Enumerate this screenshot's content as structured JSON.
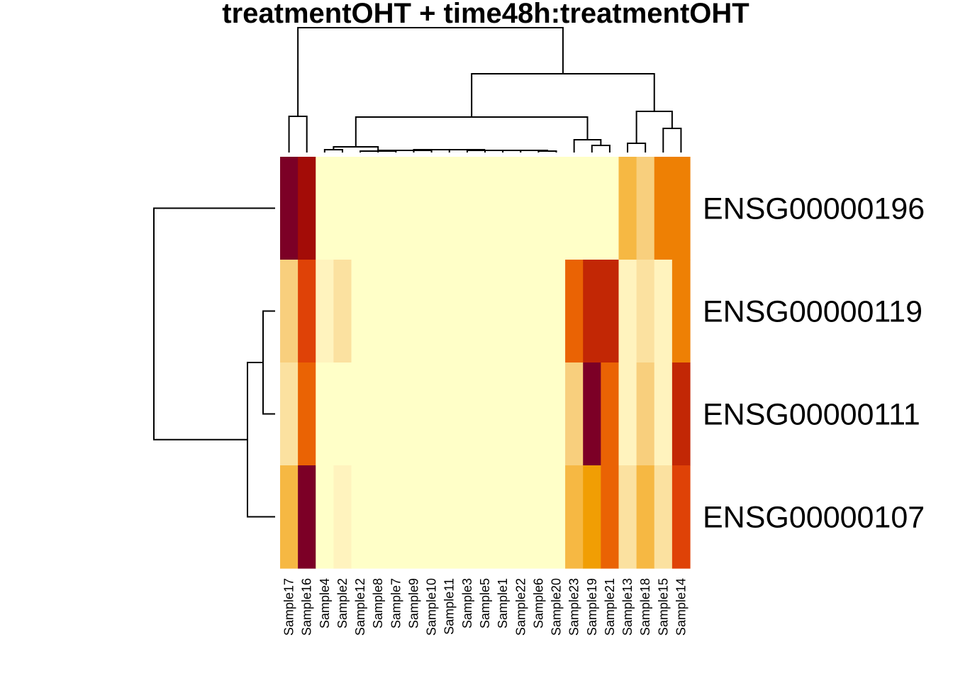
{
  "chart_data": {
    "type": "heatmap",
    "title": "treatmentOHT + time48h:treatmentOHT",
    "columns": [
      "Sample17",
      "Sample16",
      "Sample4",
      "Sample2",
      "Sample12",
      "Sample8",
      "Sample7",
      "Sample9",
      "Sample10",
      "Sample11",
      "Sample3",
      "Sample5",
      "Sample1",
      "Sample22",
      "Sample6",
      "Sample20",
      "Sample23",
      "Sample19",
      "Sample21",
      "Sample13",
      "Sample18",
      "Sample15",
      "Sample14"
    ],
    "rows": [
      "ENSG00000196",
      "ENSG00000119",
      "ENSG00000111",
      "ENSG00000107"
    ],
    "color_scale": [
      "#FFFFC8",
      "#FFF3BE",
      "#FBE1A0",
      "#F8CF7D",
      "#F6B843",
      "#F19E04",
      "#EE8004",
      "#EA6304",
      "#DF4207",
      "#C22705",
      "#A30C07",
      "#7C0026"
    ],
    "color_scale_note": "0 = lowest (pale yellow), 11 = highest (dark red)",
    "values": [
      [
        11,
        10,
        0,
        0,
        0,
        0,
        0,
        0,
        0,
        0,
        0,
        0,
        0,
        0,
        0,
        0,
        0,
        0,
        0,
        4,
        3,
        6,
        6
      ],
      [
        3,
        8,
        1,
        2,
        0,
        0,
        0,
        0,
        0,
        0,
        0,
        0,
        0,
        0,
        0,
        0,
        7,
        9,
        9,
        1,
        2,
        1,
        6
      ],
      [
        2,
        7,
        0,
        0,
        0,
        0,
        0,
        0,
        0,
        0,
        0,
        0,
        0,
        0,
        0,
        0,
        3,
        11,
        7,
        1,
        3,
        1,
        9
      ],
      [
        4,
        11,
        0,
        1,
        0,
        0,
        0,
        0,
        0,
        0,
        0,
        0,
        0,
        0,
        0,
        0,
        4,
        5,
        7,
        2,
        4,
        2,
        8
      ]
    ],
    "grid": false,
    "legend": "none"
  }
}
